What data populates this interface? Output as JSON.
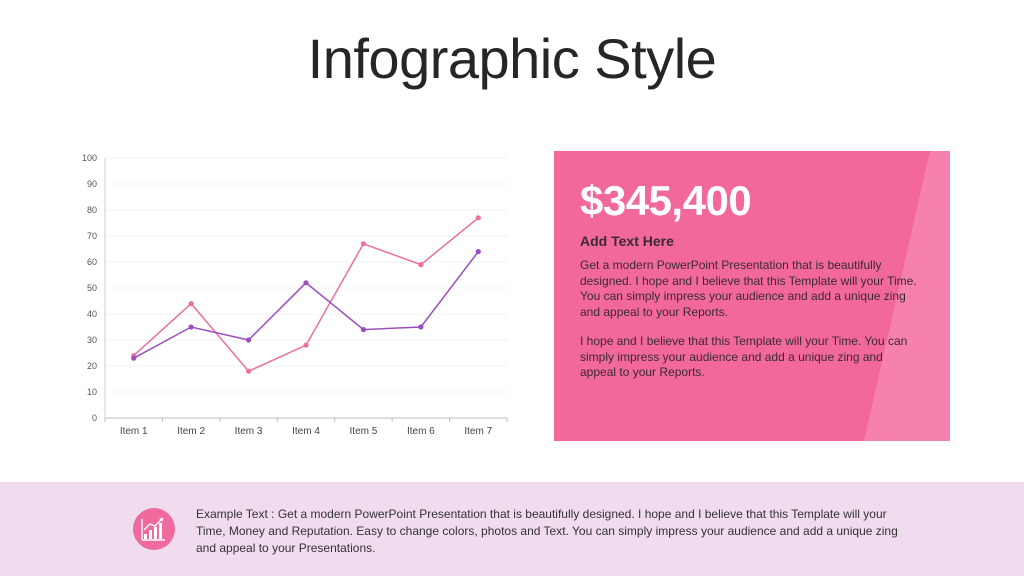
{
  "title": "Infographic Style",
  "chart_data": {
    "type": "line",
    "categories": [
      "Item 1",
      "Item 2",
      "Item 3",
      "Item 4",
      "Item 5",
      "Item 6",
      "Item 7"
    ],
    "series": [
      {
        "values": [
          24,
          44,
          18,
          28,
          67,
          59,
          77
        ],
        "color": "#ec6fa0"
      },
      {
        "values": [
          23,
          35,
          30,
          52,
          34,
          35,
          64
        ],
        "color": "#9b4fbf"
      }
    ],
    "yticks": [
      "0",
      "10",
      "20",
      "30",
      "40",
      "50",
      "60",
      "70",
      "80",
      "90",
      "100"
    ],
    "ylim": [
      0,
      100
    ],
    "grid": true,
    "title": "",
    "xlabel": "",
    "ylabel": ""
  },
  "card": {
    "amount": "$345,400",
    "subhead": "Add Text  Here",
    "para1": "Get a modern PowerPoint  Presentation that is beautifully designed.  I hope and I believe that this Template will your Time. You can simply impress your audience and add a unique zing and appeal to your Reports.",
    "para2": "I hope and I believe that this Template will your Time. You can simply impress your audience and add a unique zing and appeal to your Reports.",
    "color": "#f2679c"
  },
  "footer": {
    "icon": "bar-chart-icon",
    "text": "Example Text : Get a modern PowerPoint  Presentation that is beautifully designed. I hope and I believe that this Template will your Time, Money and Reputation. Easy to change colors, photos and Text. You can simply impress your audience and add a unique zing and appeal to your Presentations."
  }
}
